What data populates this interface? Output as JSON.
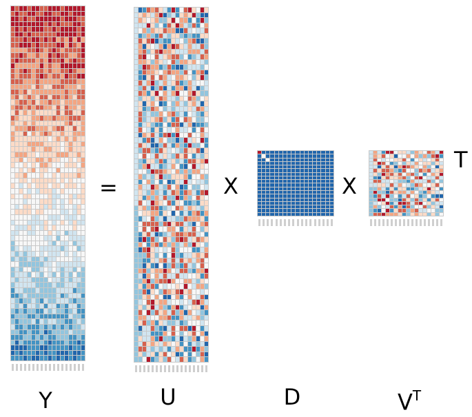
{
  "colors": {
    "dark_red": "#b2182b",
    "red": "#d6604d",
    "light_red": "#f4a582",
    "pale_red": "#fddbc7",
    "white": "#f7f7f7",
    "pale_blue": "#d1e5f0",
    "light_blue": "#92c5de",
    "blue": "#4393c3",
    "dark_blue": "#2166ac"
  },
  "operators": {
    "equals": "=",
    "times1": "X",
    "times2": "X",
    "transpose": "T"
  },
  "labels": {
    "y": "Y",
    "u": "U",
    "d": "D",
    "v": "V",
    "v_sup": "T"
  },
  "matrices": [
    {
      "name": "Y",
      "rows": 68,
      "cols": 18,
      "pattern": "gradient"
    },
    {
      "name": "U",
      "rows": 68,
      "cols": 18,
      "pattern": "random"
    },
    {
      "name": "D",
      "rows": 18,
      "cols": 18,
      "pattern": "diagonal"
    },
    {
      "name": "VT",
      "rows": 18,
      "cols": 18,
      "pattern": "random"
    }
  ]
}
